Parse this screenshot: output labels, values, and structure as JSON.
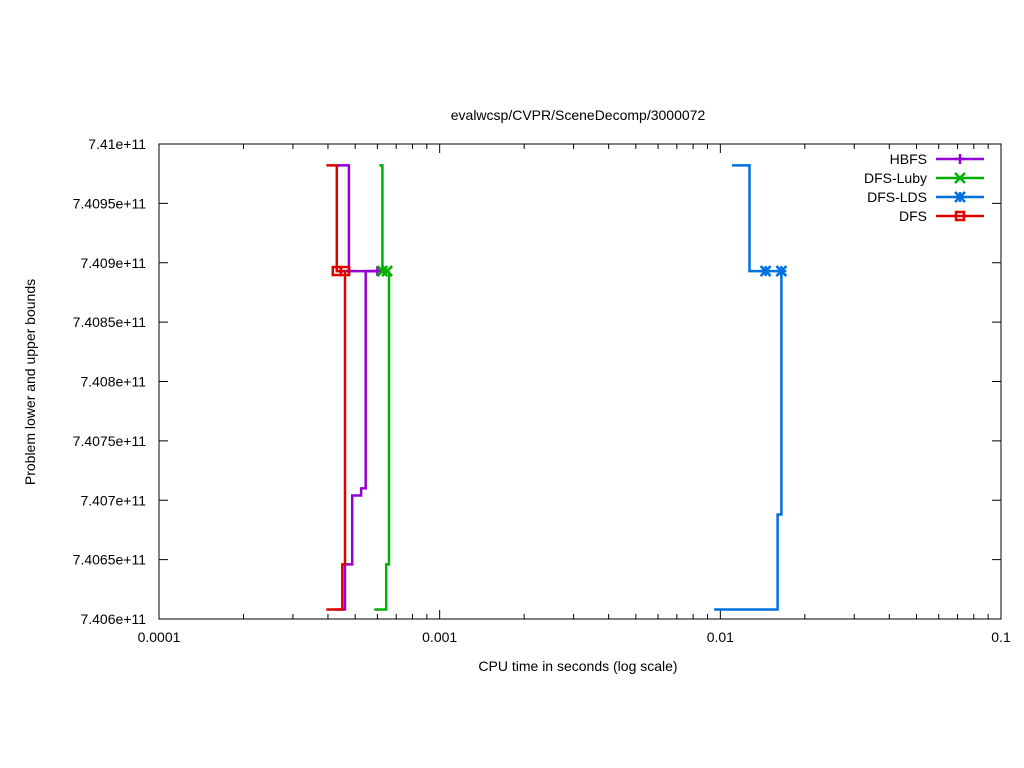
{
  "chart_data": {
    "type": "line",
    "title": "evalwcsp/CVPR/SceneDecomp/3000072",
    "xlabel": "CPU time in seconds (log scale)",
    "ylabel": "Problem lower and upper bounds",
    "x_scale": "log",
    "xlim": [
      0.0001,
      0.1
    ],
    "ylim": [
      740600000000,
      741000000000
    ],
    "x_ticks": [
      {
        "value": 0.0001,
        "label": "0.0001"
      },
      {
        "value": 0.001,
        "label": "0.001"
      },
      {
        "value": 0.01,
        "label": "0.01"
      },
      {
        "value": 0.1,
        "label": "0.1"
      }
    ],
    "y_ticks": [
      {
        "value": 740600000000,
        "label": "7.406e+11"
      },
      {
        "value": 740650000000,
        "label": "7.4065e+11"
      },
      {
        "value": 740700000000,
        "label": "7.407e+11"
      },
      {
        "value": 740750000000,
        "label": "7.4075e+11"
      },
      {
        "value": 740800000000,
        "label": "7.408e+11"
      },
      {
        "value": 740850000000,
        "label": "7.4085e+11"
      },
      {
        "value": 740900000000,
        "label": "7.409e+11"
      },
      {
        "value": 740950000000,
        "label": "7.4095e+11"
      },
      {
        "value": 741000000000,
        "label": "7.41e+11"
      }
    ],
    "grid": false,
    "legend_position": "top-right",
    "series": [
      {
        "name": "HBFS",
        "color": "#9400d3",
        "marker": "plus",
        "upper": [
          [
            0.00043,
            740982000000
          ],
          [
            0.000475,
            740982000000
          ],
          [
            0.000475,
            740893000000
          ],
          [
            0.0006,
            740893000000
          ]
        ],
        "lower": [
          [
            0.00043,
            740608000000
          ],
          [
            0.00046,
            740608000000
          ],
          [
            0.00046,
            740646000000
          ],
          [
            0.000488,
            740646000000
          ],
          [
            0.000488,
            740704000000
          ],
          [
            0.000525,
            740704000000
          ],
          [
            0.000525,
            740710000000
          ],
          [
            0.000545,
            740710000000
          ],
          [
            0.000545,
            740893000000
          ],
          [
            0.0006,
            740893000000
          ]
        ],
        "markers": [
          [
            0.000475,
            740893000000
          ],
          [
            0.0006,
            740893000000
          ]
        ]
      },
      {
        "name": "DFS-Luby",
        "color": "#00b000",
        "marker": "x",
        "upper": [
          [
            0.00061,
            740982000000
          ],
          [
            0.000625,
            740982000000
          ],
          [
            0.000625,
            740893000000
          ],
          [
            0.00065,
            740893000000
          ]
        ],
        "lower": [
          [
            0.000585,
            740608000000
          ],
          [
            0.000645,
            740608000000
          ],
          [
            0.000645,
            740646000000
          ],
          [
            0.00066,
            740646000000
          ],
          [
            0.00066,
            740893000000
          ]
        ],
        "markers": [
          [
            0.000625,
            740893000000
          ],
          [
            0.00065,
            740893000000
          ]
        ]
      },
      {
        "name": "DFS-LDS",
        "color": "#0070e0",
        "marker": "star",
        "upper": [
          [
            0.011,
            740982000000
          ],
          [
            0.0127,
            740982000000
          ],
          [
            0.0127,
            740893000000
          ],
          [
            0.0165,
            740893000000
          ]
        ],
        "lower": [
          [
            0.0095,
            740608000000
          ],
          [
            0.016,
            740608000000
          ],
          [
            0.016,
            740688000000
          ],
          [
            0.0165,
            740688000000
          ],
          [
            0.0165,
            740893000000
          ]
        ],
        "markers": [
          [
            0.0145,
            740893000000
          ],
          [
            0.0165,
            740893000000
          ]
        ]
      },
      {
        "name": "DFS",
        "color": "#e00000",
        "marker": "square",
        "upper": [
          [
            0.000395,
            740982000000
          ],
          [
            0.00043,
            740982000000
          ],
          [
            0.00043,
            740893000000
          ],
          [
            0.00046,
            740893000000
          ]
        ],
        "lower": [
          [
            0.000395,
            740608000000
          ],
          [
            0.00045,
            740608000000
          ],
          [
            0.00045,
            740646000000
          ],
          [
            0.00046,
            740646000000
          ],
          [
            0.00046,
            740893000000
          ]
        ],
        "markers": [
          [
            0.00043,
            740893000000
          ],
          [
            0.00046,
            740893000000
          ]
        ]
      }
    ]
  }
}
